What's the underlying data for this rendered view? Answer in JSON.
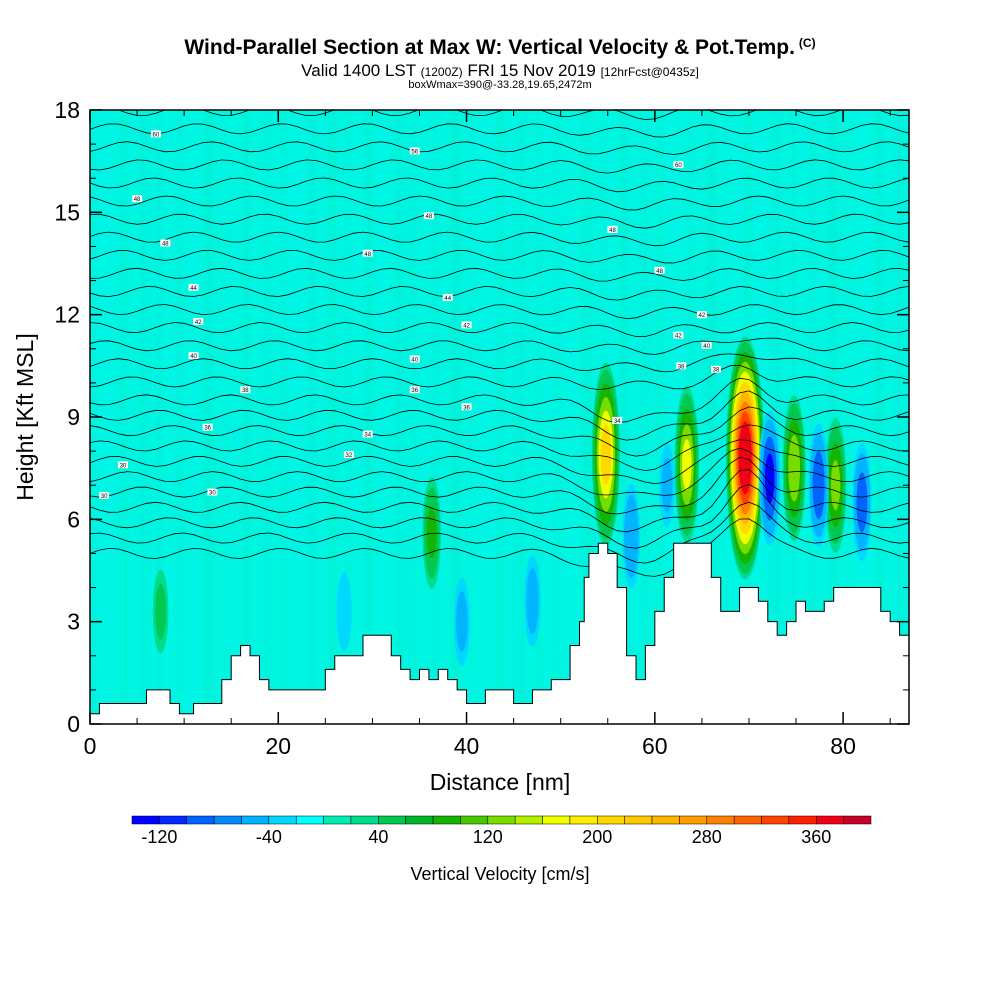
{
  "title": {
    "main": "Wind-Parallel Section at Max W: Vertical Velocity & Pot.Temp.",
    "copyright": "(C)",
    "valid_prefix": "Valid 1400 LST",
    "valid_utc": "(1200Z)",
    "valid_date": "FRI 15 Nov 2019",
    "forecast": "[12hrFcst@0435z]",
    "boxinfo": "boxWmax=390@-33.28,19.65,2472m"
  },
  "chart_data": {
    "type": "heatmap",
    "xlabel": "Distance [nm]",
    "ylabel": "Height [Kft MSL]",
    "xlim": [
      0,
      87
    ],
    "ylim": [
      0,
      18
    ],
    "x_ticks": [
      0,
      20,
      40,
      60,
      80
    ],
    "y_ticks": [
      0,
      3,
      6,
      9,
      12,
      15,
      18
    ],
    "colorbar": {
      "label": "Vertical Velocity [cm/s]",
      "tick_values": [
        -120,
        -40,
        40,
        120,
        200,
        280,
        360
      ],
      "tick_labels": [
        "-120",
        "-40",
        "40",
        "120",
        "200",
        "280",
        "360"
      ],
      "bins": [
        -140,
        -120,
        -100,
        -80,
        -60,
        -40,
        -20,
        0,
        20,
        40,
        60,
        80,
        100,
        120,
        140,
        160,
        180,
        200,
        220,
        240,
        260,
        280,
        300,
        320,
        340,
        360,
        380,
        400
      ],
      "colors": [
        "#0000ff",
        "#0028ff",
        "#0064ff",
        "#008cff",
        "#00b4ff",
        "#00d8ff",
        "#00ffff",
        "#00eeb4",
        "#00dc8c",
        "#00c850",
        "#00b428",
        "#14b400",
        "#46c800",
        "#78dc00",
        "#b4f000",
        "#f0ff00",
        "#ffec00",
        "#ffd800",
        "#ffc800",
        "#ffb400",
        "#ff9c00",
        "#ff8000",
        "#ff6400",
        "#ff4400",
        "#ff2000",
        "#f00014",
        "#c80028"
      ]
    },
    "terrain_kft": [
      [
        0,
        0.3
      ],
      [
        1,
        0.6
      ],
      [
        4,
        0.6
      ],
      [
        6,
        1
      ],
      [
        8,
        1
      ],
      [
        8.5,
        0.6
      ],
      [
        9,
        0.6
      ],
      [
        9.5,
        0.3
      ],
      [
        10.5,
        0.3
      ],
      [
        11,
        0.6
      ],
      [
        13,
        0.6
      ],
      [
        14,
        1.3
      ],
      [
        15,
        2
      ],
      [
        16,
        2.3
      ],
      [
        17,
        2
      ],
      [
        18,
        1.3
      ],
      [
        19,
        1
      ],
      [
        24,
        1
      ],
      [
        25,
        1.6
      ],
      [
        26,
        2
      ],
      [
        28,
        2
      ],
      [
        29,
        2.6
      ],
      [
        31,
        2.6
      ],
      [
        32,
        2
      ],
      [
        33,
        1.6
      ],
      [
        34,
        1.3
      ],
      [
        35,
        1.6
      ],
      [
        36,
        1.3
      ],
      [
        37,
        1.6
      ],
      [
        38,
        1.3
      ],
      [
        39,
        1
      ],
      [
        40,
        0.6
      ],
      [
        41,
        0.6
      ],
      [
        42,
        1
      ],
      [
        44,
        1
      ],
      [
        45,
        0.6
      ],
      [
        46,
        0.6
      ],
      [
        47,
        1
      ],
      [
        49,
        1.3
      ],
      [
        50,
        1.3
      ],
      [
        51,
        2.3
      ],
      [
        52,
        3
      ],
      [
        52.5,
        4.3
      ],
      [
        53,
        5
      ],
      [
        54,
        5.3
      ],
      [
        55,
        5
      ],
      [
        56,
        4
      ],
      [
        57,
        2
      ],
      [
        58,
        1.3
      ],
      [
        59,
        2.3
      ],
      [
        60,
        3.3
      ],
      [
        61,
        4.3
      ],
      [
        62,
        5.3
      ],
      [
        65,
        5.3
      ],
      [
        66,
        4.3
      ],
      [
        67,
        3.3
      ],
      [
        68,
        3.3
      ],
      [
        69,
        4
      ],
      [
        71,
        3.6
      ],
      [
        72,
        3
      ],
      [
        73,
        2.6
      ],
      [
        74,
        3
      ],
      [
        75,
        3.6
      ],
      [
        76,
        3.3
      ],
      [
        77,
        3.3
      ],
      [
        78,
        3.6
      ],
      [
        79,
        4
      ],
      [
        83,
        4
      ],
      [
        84,
        3.3
      ],
      [
        85,
        3
      ],
      [
        86,
        2.6
      ],
      [
        87,
        2.3
      ]
    ],
    "w_cells": [
      {
        "x": 69.6,
        "z": 7.8,
        "w": 390
      },
      {
        "x": 54.8,
        "z": 7.9,
        "w": 210
      },
      {
        "x": 63.4,
        "z": 7.6,
        "w": 160
      },
      {
        "x": 74.8,
        "z": 7.5,
        "w": 140
      },
      {
        "x": 79.2,
        "z": 7.0,
        "w": 120
      },
      {
        "x": 36.3,
        "z": 5.6,
        "w": 80
      },
      {
        "x": 7.5,
        "z": 3.3,
        "w": 40
      },
      {
        "x": 72.2,
        "z": 7.2,
        "w": -120
      },
      {
        "x": 77.4,
        "z": 7.0,
        "w": -100
      },
      {
        "x": 82.0,
        "z": 6.5,
        "w": -90
      },
      {
        "x": 57.5,
        "z": 5.5,
        "w": -70
      },
      {
        "x": 47.0,
        "z": 3.6,
        "w": -50
      },
      {
        "x": 39.5,
        "z": 3.0,
        "w": -45
      },
      {
        "x": 27.0,
        "z": 3.3,
        "w": -35
      },
      {
        "x": 61.3,
        "z": 7.0,
        "w": -40
      }
    ],
    "theta_labels": [
      {
        "x": 7,
        "z": 17.3,
        "text": "60"
      },
      {
        "x": 34.5,
        "z": 16.8,
        "text": "56"
      },
      {
        "x": 62.5,
        "z": 16.4,
        "text": "60"
      },
      {
        "x": 5,
        "z": 15.4,
        "text": "48"
      },
      {
        "x": 36,
        "z": 14.9,
        "text": "48"
      },
      {
        "x": 55.5,
        "z": 14.5,
        "text": "48"
      },
      {
        "x": 8,
        "z": 14.1,
        "text": "48"
      },
      {
        "x": 29.5,
        "z": 13.8,
        "text": "48"
      },
      {
        "x": 60.5,
        "z": 13.3,
        "text": "48"
      },
      {
        "x": 11,
        "z": 12.8,
        "text": "44"
      },
      {
        "x": 38,
        "z": 12.5,
        "text": "44"
      },
      {
        "x": 65,
        "z": 12,
        "text": "42"
      },
      {
        "x": 11.5,
        "z": 11.8,
        "text": "42"
      },
      {
        "x": 40,
        "z": 11.7,
        "text": "42"
      },
      {
        "x": 62.5,
        "z": 11.4,
        "text": "42"
      },
      {
        "x": 11,
        "z": 10.8,
        "text": "40"
      },
      {
        "x": 34.5,
        "z": 10.7,
        "text": "40"
      },
      {
        "x": 65.5,
        "z": 11.1,
        "text": "40"
      },
      {
        "x": 62.8,
        "z": 10.5,
        "text": "38"
      },
      {
        "x": 66.5,
        "z": 10.4,
        "text": "38"
      },
      {
        "x": 16.5,
        "z": 9.8,
        "text": "38"
      },
      {
        "x": 34.5,
        "z": 9.8,
        "text": "36"
      },
      {
        "x": 40,
        "z": 9.3,
        "text": "36"
      },
      {
        "x": 56,
        "z": 8.9,
        "text": "34"
      },
      {
        "x": 12.5,
        "z": 8.7,
        "text": "36"
      },
      {
        "x": 29.5,
        "z": 8.5,
        "text": "34"
      },
      {
        "x": 27.5,
        "z": 7.9,
        "text": "32"
      },
      {
        "x": 3.5,
        "z": 7.6,
        "text": "30"
      },
      {
        "x": 1.5,
        "z": 6.7,
        "text": "30"
      },
      {
        "x": 13,
        "z": 6.8,
        "text": "30"
      }
    ]
  }
}
